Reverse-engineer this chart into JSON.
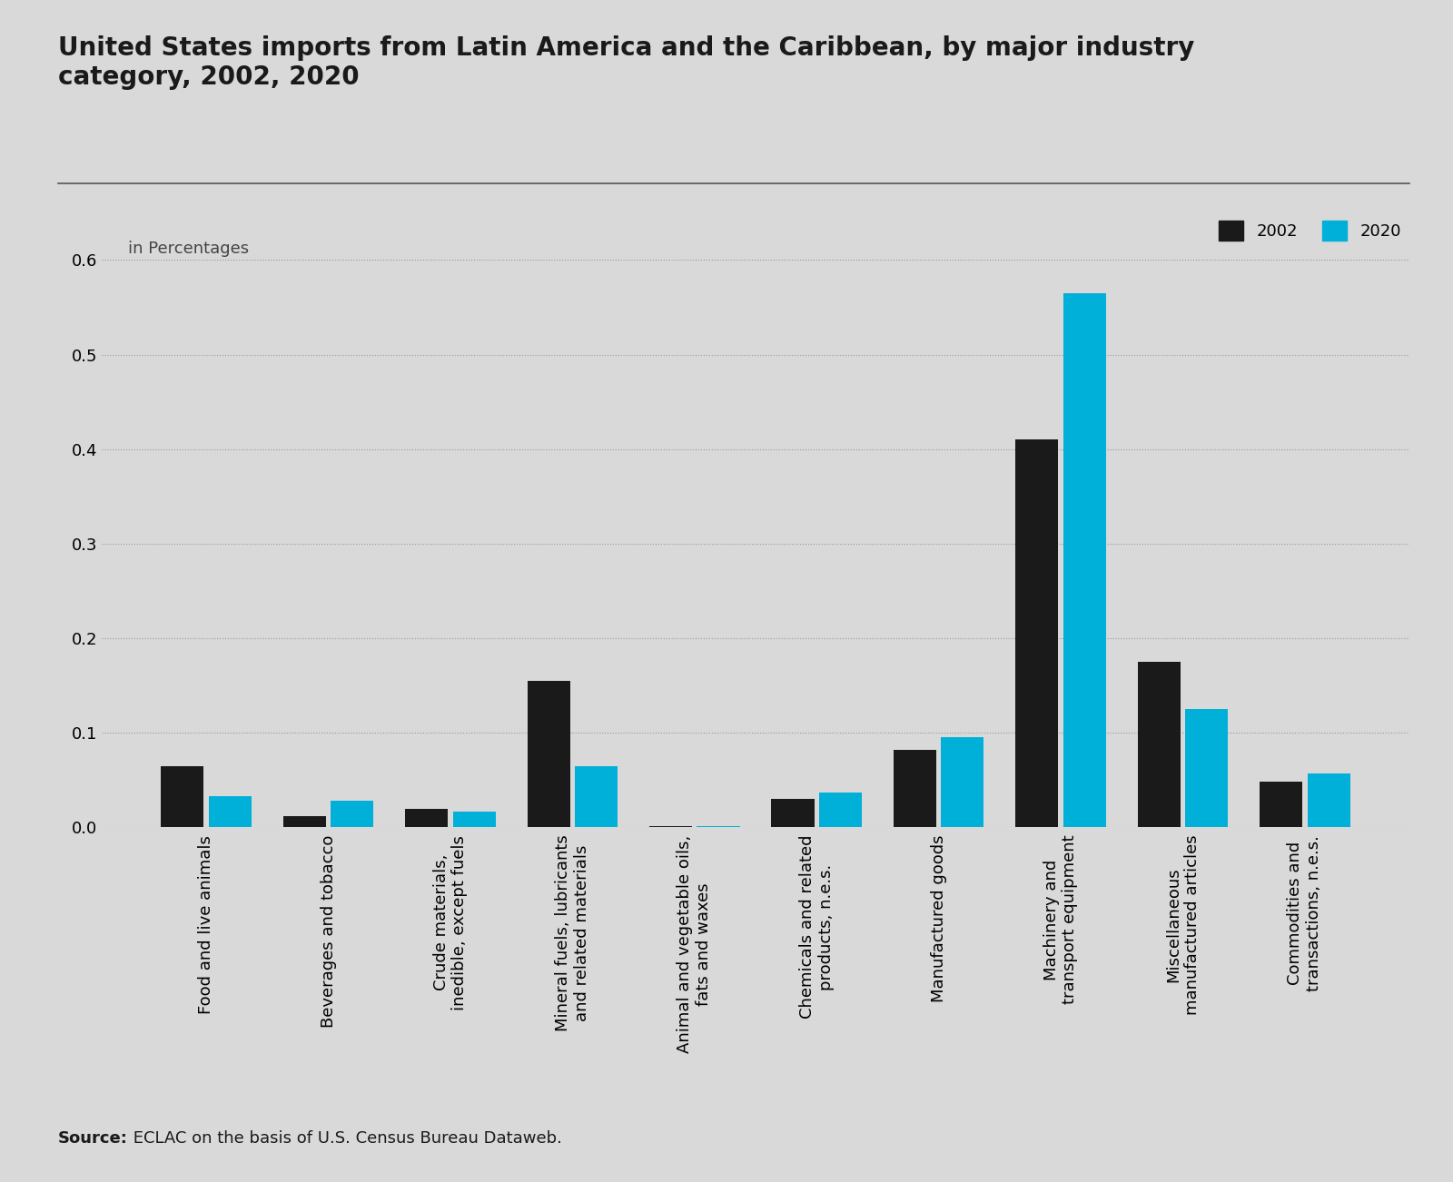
{
  "title": "United States imports from Latin America and the Caribbean, by major industry\ncategory, 2002, 2020",
  "ylabel": "in Percentages",
  "categories": [
    "Food and live animals",
    "Beverages and tobacco",
    "Crude materials,\ninedible, except fuels",
    "Mineral fuels, lubricants\nand related materials",
    "Animal and vegetable oils,\nfats and waxes",
    "Chemicals and related\nproducts, n.e.s.",
    "Manufactured goods",
    "Machinery and\ntransport equipment",
    "Miscellaneous\nmanufactured articles",
    "Commodities and\ntransactions, n.e.s."
  ],
  "values_2002": [
    0.065,
    0.012,
    0.02,
    0.155,
    0.001,
    0.03,
    0.082,
    0.41,
    0.175,
    0.048
  ],
  "values_2020": [
    0.033,
    0.028,
    0.017,
    0.065,
    0.001,
    0.037,
    0.095,
    0.565,
    0.125,
    0.057
  ],
  "color_2002": "#1a1a1a",
  "color_2020": "#00b0d8",
  "background_color": "#d9d9d9",
  "ylim": [
    0,
    0.65
  ],
  "yticks": [
    0.0,
    0.1,
    0.2,
    0.3,
    0.4,
    0.5,
    0.6
  ],
  "source_bold": "Source:",
  "source_text": " ECLAC on the basis of U.S. Census Bureau Dataweb.",
  "legend_labels": [
    "2002",
    "2020"
  ],
  "title_fontsize": 20,
  "label_fontsize": 13,
  "tick_fontsize": 13,
  "source_fontsize": 13
}
